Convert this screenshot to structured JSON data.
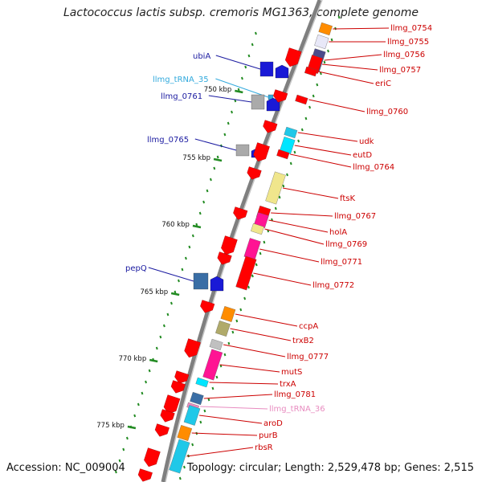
{
  "title": "Lactococcus lactis subsp. cremoris MG1363, complete genome",
  "footer": {
    "accession": "Accession: NC_009004",
    "topology": "Topology: circular; Length: 2,529,478 bp; Genes: 2,515"
  },
  "colors": {
    "backbone": "#7f7f7f",
    "tick": "#228B22",
    "forward_label": "#1a1aa0",
    "reverse_label": "#cc0000",
    "trna_forward_label": "#33aadd",
    "trna_reverse_label": "#e88cc0"
  },
  "ruler": {
    "labels": [
      "750 kbp",
      "755 kbp",
      "760 kbp",
      "765 kbp",
      "770 kbp",
      "775 kbp"
    ]
  },
  "forward_genes": [
    {
      "name": "ubiA",
      "label_color": "forward_label"
    },
    {
      "name": "llmg_tRNA_35",
      "label_color": "trna_forward_label"
    },
    {
      "name": "llmg_0761",
      "label_color": "forward_label"
    },
    {
      "name": "llmg_0765",
      "label_color": "forward_label"
    },
    {
      "name": "pepQ",
      "label_color": "forward_label"
    }
  ],
  "reverse_genes": [
    {
      "name": "llmg_0754"
    },
    {
      "name": "llmg_0755"
    },
    {
      "name": "llmg_0756"
    },
    {
      "name": "llmg_0757"
    },
    {
      "name": "eriC"
    },
    {
      "name": "llmg_0760"
    },
    {
      "name": "udk"
    },
    {
      "name": "eutD"
    },
    {
      "name": "llmg_0764"
    },
    {
      "name": "ftsK"
    },
    {
      "name": "llmg_0767"
    },
    {
      "name": "holA"
    },
    {
      "name": "llmg_0769"
    },
    {
      "name": "llmg_0771"
    },
    {
      "name": "llmg_0772"
    },
    {
      "name": "ccpA"
    },
    {
      "name": "trxB2"
    },
    {
      "name": "llmg_0777"
    },
    {
      "name": "mutS"
    },
    {
      "name": "trxA"
    },
    {
      "name": "llmg_0781"
    },
    {
      "name": "llmg_tRNA_36",
      "label_color": "trna_reverse_label"
    },
    {
      "name": "aroD"
    },
    {
      "name": "purB"
    },
    {
      "name": "rbsR"
    }
  ]
}
